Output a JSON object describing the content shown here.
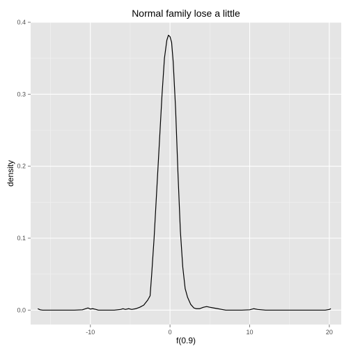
{
  "chart_data": {
    "type": "line",
    "title": "Normal family lose a little",
    "xlabel": "f(0.9)",
    "ylabel": "density",
    "xlim": [
      -17.5,
      21.5
    ],
    "ylim": [
      -0.02,
      0.4
    ],
    "x_ticks": [
      -10,
      0,
      10,
      20
    ],
    "x_tick_labels": [
      "-10",
      "0",
      "10",
      "20"
    ],
    "y_ticks": [
      0.0,
      0.1,
      0.2,
      0.3,
      0.4
    ],
    "y_tick_labels": [
      "0.0",
      "0.1",
      "0.2",
      "0.3",
      "0.4"
    ],
    "grid": true,
    "colors": {
      "panel": "#e5e5e5",
      "grid_major": "#ffffff",
      "grid_minor": "#f2f2f2",
      "line": "#000000"
    },
    "series": [
      {
        "x": [
          -16.6,
          -16.3,
          -16.0,
          -15.0,
          -14.0,
          -13.0,
          -12.0,
          -11.0,
          -10.6,
          -10.3,
          -10.0,
          -9.7,
          -9.3,
          -9.0,
          -8.0,
          -7.0,
          -6.2,
          -5.9,
          -5.6,
          -5.2,
          -4.8,
          -4.3,
          -3.8,
          -3.3,
          -2.8,
          -2.5,
          -2.3,
          -2.0,
          -1.7,
          -1.4,
          -1.0,
          -0.7,
          -0.4,
          -0.2,
          0.0,
          0.2,
          0.4,
          0.7,
          1.0,
          1.3,
          1.6,
          1.9,
          2.2,
          2.6,
          3.0,
          3.3,
          3.7,
          4.2,
          4.6,
          5.0,
          5.5,
          6.0,
          6.5,
          7.0,
          8.0,
          9.0,
          10.0,
          10.5,
          11.0,
          12.0,
          14.0,
          16.0,
          18.0,
          19.5,
          20.0,
          20.2
        ],
        "y": [
          0.002,
          0.0005,
          0.0,
          0.0,
          0.0,
          0.0,
          0.0,
          0.0005,
          0.002,
          0.003,
          0.0015,
          0.002,
          0.001,
          0.0,
          0.0,
          0.0,
          0.001,
          0.002,
          0.001,
          0.002,
          0.001,
          0.002,
          0.004,
          0.007,
          0.014,
          0.02,
          0.05,
          0.1,
          0.16,
          0.22,
          0.3,
          0.35,
          0.375,
          0.382,
          0.38,
          0.372,
          0.345,
          0.28,
          0.19,
          0.11,
          0.06,
          0.03,
          0.018,
          0.008,
          0.003,
          0.002,
          0.002,
          0.004,
          0.005,
          0.004,
          0.003,
          0.002,
          0.001,
          0.0,
          0.0,
          0.0,
          0.0005,
          0.002,
          0.001,
          0.0,
          0.0,
          0.0,
          0.0,
          0.0,
          0.001,
          0.002
        ]
      }
    ]
  }
}
